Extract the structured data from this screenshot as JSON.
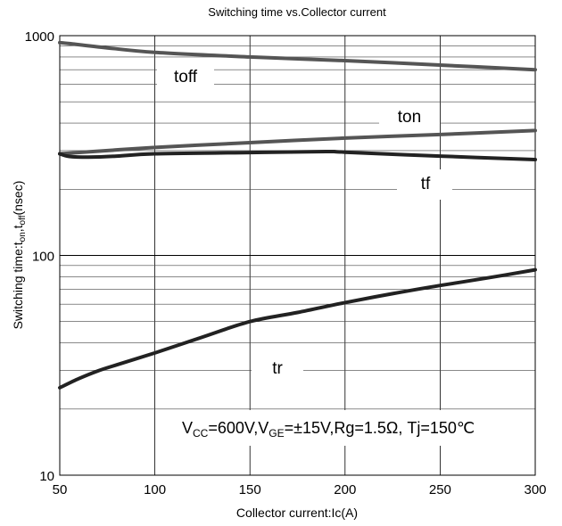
{
  "chart_data": {
    "type": "line",
    "title": "Switching time vs.Collector current",
    "xlabel": "Collector current:Ic(A)",
    "ylabel": {
      "main": "Switching time:t",
      "sub_on": "on",
      "sep": ",t",
      "sub_off": "off",
      "unit": "(nsec)"
    },
    "x_scale": "linear",
    "y_scale": "log",
    "xlim": [
      50,
      300
    ],
    "ylim": [
      10,
      1000
    ],
    "x_ticks": [
      50,
      100,
      150,
      200,
      250,
      300
    ],
    "x_tick_labels": [
      "50",
      "100",
      "150",
      "200",
      "250",
      "300"
    ],
    "y_ticks": [
      10,
      100,
      1000
    ],
    "y_tick_labels": [
      "10",
      "100",
      "1000"
    ],
    "grid": true,
    "legend": "none",
    "line_color": "#555555",
    "series": [
      {
        "name": "toff",
        "color": "#555555",
        "x": [
          50,
          55,
          75,
          100,
          150,
          200,
          250,
          300
        ],
        "y": [
          930,
          920,
          880,
          840,
          800,
          770,
          735,
          700
        ]
      },
      {
        "name": "ton",
        "color": "#555555",
        "x": [
          50,
          100,
          150,
          200,
          250,
          300
        ],
        "y": [
          290,
          310,
          326,
          342,
          355,
          370
        ]
      },
      {
        "name": "tf",
        "color": "#222222",
        "x": [
          50,
          55,
          65,
          80,
          100,
          150,
          190,
          200,
          250,
          300
        ],
        "y": [
          290,
          282,
          280,
          283,
          290,
          294,
          297,
          295,
          283,
          273
        ]
      },
      {
        "name": "tr",
        "color": "#222222",
        "x": [
          50,
          60,
          70,
          80,
          100,
          125,
          150,
          175,
          200,
          225,
          250,
          275,
          300
        ],
        "y": [
          25,
          27.5,
          29.8,
          31.8,
          36,
          42.5,
          50,
          55,
          61,
          67,
          73,
          79,
          86
        ]
      }
    ],
    "annotations": {
      "toff": "toff",
      "ton": "ton",
      "tf": "tf",
      "tr": "tr",
      "conditions": {
        "p1": "V",
        "s1": "CC",
        "p2": "=600V,V",
        "s2": "GE",
        "p3": "=±15V,Rg=1.5Ω,  Tj=150℃"
      }
    }
  }
}
